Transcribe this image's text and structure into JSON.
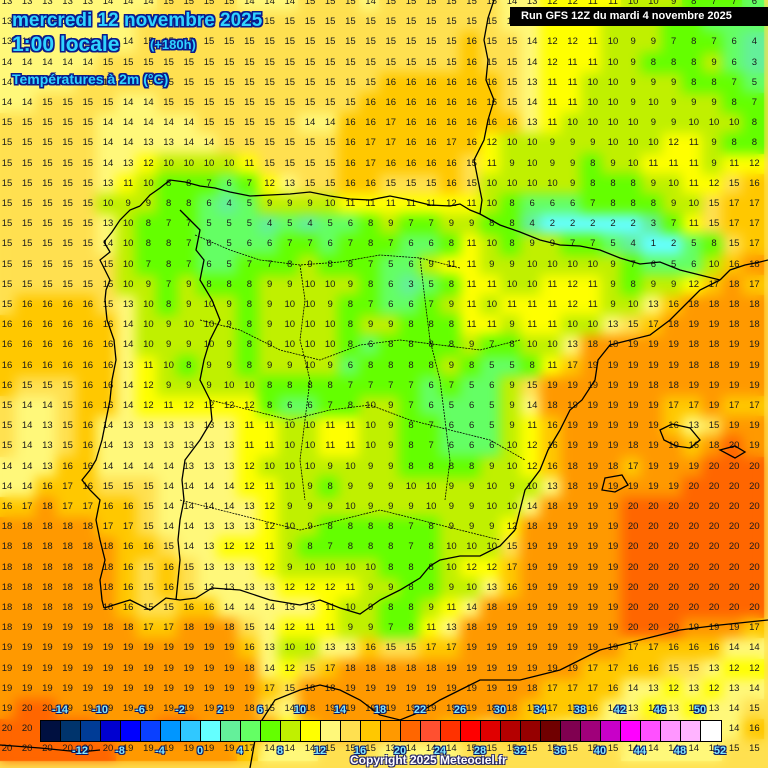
{
  "header": {
    "date": "mercredi 12 novembre 2025",
    "time": "1:00 locale",
    "lead_time": "(+180h)",
    "parameter": "Températures à 2m (°C)",
    "run": "Run GFS 12Z du mardi 4 novembre 2025"
  },
  "footer": {
    "copyright": "Copyright 2025 Meteociel.fr"
  },
  "legend": {
    "colors": [
      "#001040",
      "#00346c",
      "#003c96",
      "#0000d0",
      "#0000ff",
      "#0a40ff",
      "#0096ff",
      "#30c8ff",
      "#64ffff",
      "#64f09a",
      "#64ff64",
      "#64ff00",
      "#c0f000",
      "#ffff00",
      "#fff87a",
      "#ffe050",
      "#ffc800",
      "#ff9900",
      "#ff6600",
      "#ff5030",
      "#ff3200",
      "#ff0000",
      "#e00000",
      "#b40000",
      "#960000",
      "#700000",
      "#800050",
      "#a0007a",
      "#c800c8",
      "#ff00ff",
      "#ff50ff",
      "#ff96ff",
      "#ffb4ff",
      "#ffffff"
    ],
    "top_labels": [
      "-14",
      "-10",
      "-6",
      "-2",
      "2",
      "6",
      "10",
      "14",
      "18",
      "22",
      "26",
      "30",
      "34",
      "38",
      "42",
      "46",
      "50"
    ],
    "bottom_labels": [
      "-12",
      "-8",
      "-4",
      "0",
      "4",
      "8",
      "12",
      "16",
      "20",
      "24",
      "28",
      "32",
      "36",
      "40",
      "44",
      "48",
      "52"
    ]
  },
  "map": {
    "region": "Iberian Peninsula",
    "grid_rows": [
      "13 13 13 13 13 14 14 14 15 15 15 15 14 14 14 15 15 15 14 15 15 15 15 15 15 14 13 12 12 11 11 10 10 9 8 7 7 6",
      "13 13 13 13 13 14 14 15 15 15 15 15 15 15 15 15 15 15 15 15 15 15 15 15 15 14 14 12 12 11 10 9 9 7 8 6 6 5",
      "13 13 13 14 14 14 14 15 15 15 15 15 15 15 15 15 15 15 15 15 15 15 15 16 15 15 14 12 12 11 10 9 9 7 8 7 6 4",
      "14 14 14 14 14 15 15 15 15 15 15 15 15 15 15 15 15 15 15 15 15 15 15 16 15 15 14 12 11 11 10 9 8 8 8 9 6 3",
      "14 14 14 14 15 15 15 15 15 15 15 15 15 15 15 15 15 15 15 16 16 16 16 16 16 15 13 11 11 10 10 9 9 9 8 8 7 5",
      "14 14 15 15 15 15 14 14 15 15 15 15 15 15 15 15 15 15 16 16 16 16 16 16 16 15 14 11 11 10 10 9 10 9 9 9 8 7",
      "15 15 15 15 15 14 14 14 14 14 15 15 15 15 15 14 14 16 16 17 16 16 16 16 16 16 13 11 10 10 10 10 9 9 10 10 10 8",
      "15 15 15 15 15 14 14 13 13 14 14 15 15 15 15 15 15 16 17 17 16 16 17 16 12 10 10 9 9 9 10 10 10 12 11 9 8 8",
      "15 15 15 15 15 14 13 12 10 10 10 10 11 15 15 15 15 16 17 16 16 16 16 15 11 9 10 9 9 8 9 10 11 11 11 9 11 12",
      "15 15 15 15 15 13 11 10 8 8 7 6 7 12 13 15 15 16 16 15 15 15 16 15 10 10 10 10 9 8 8 8 9 10 11 12 15 16",
      "15 15 15 15 15 10 9 9 8 8 6 4 5 9 9 9 10 11 11 11 11 11 12 11 10 8 6 6 6 7 8 8 8 9 10 15 17 17",
      "15 15 15 15 15 13 10 8 7 7 5 5 5 4 5 4 5 6 8 9 7 7 9 9 8 8 4 2 2 2 2 2 3 7 11 15 17 17",
      "15 15 15 15 15 14 10 8 8 7 6 5 6 6 7 7 6 7 8 7 6 6 8 11 10 8 9 9 7 7 5 4 1 2 5 8 15 17",
      "15 15 15 15 15 15 10 7 8 7 6 5 7 7 8 9 8 8 7 5 6 9 11 11 9 9 10 10 10 10 9 7 6 5 6 10 16 18",
      "15 15 15 15 15 15 10 9 7 9 8 8 8 9 9 10 10 9 8 6 3 5 8 11 11 10 10 11 12 11 9 8 9 9 12 17 18 17",
      "15 16 16 16 16 15 13 10 8 9 10 9 8 9 10 10 9 8 7 6 6 7 9 11 10 11 11 11 12 11 9 10 13 16 18 18 18 18",
      "16 16 16 16 16 16 14 10 9 10 10 9 8 9 10 10 10 8 9 9 8 8 8 11 11 9 11 11 10 10 13 15 17 18 19 19 18 18",
      "16 16 16 16 16 16 14 10 9 9 10 9 8 9 10 10 10 8 6 8 8 8 8 9 7 8 10 10 13 18 18 19 19 19 18 18 19 19",
      "16 16 16 16 16 16 13 11 10 8 9 9 8 9 9 10 9 6 8 8 8 8 9 8 5 5 8 11 17 19 19 19 19 19 18 18 19 19",
      "16 15 15 15 16 16 14 12 9 9 9 10 10 8 8 8 8 7 7 7 7 6 7 5 6 9 15 19 19 19 19 19 18 18 19 19 19 19",
      "15 14 14 15 16 16 14 12 11 12 12 12 12 8 6 6 7 8 10 9 7 6 5 6 5 9 14 18 19 19 19 19 19 17 17 19 17 17",
      "15 14 13 15 16 14 13 13 13 13 13 13 11 11 10 10 11 11 10 9 8 7 6 6 5 9 11 16 19 19 19 19 19 16 13 15 19 19",
      "15 14 13 15 16 14 13 13 13 13 13 13 11 11 10 10 11 11 10 9 8 7 6 6 6 10 12 16 19 19 19 18 19 19 16 18 20 19",
      "14 14 13 16 16 14 14 14 14 13 13 13 12 10 10 10 9 10 9 9 8 8 8 8 9 10 12 16 18 19 18 17 19 19 19 20 20 20",
      "14 14 16 17 16 15 15 15 14 14 14 14 12 11 10 9 8 9 9 9 10 10 9 9 10 9 10 13 18 19 19 19 19 19 20 20 20 20",
      "16 17 18 17 17 16 16 15 14 14 14 14 13 12 9 9 9 10 9 9 9 10 9 9 10 10 14 18 19 19 19 20 20 20 20 20 20 20",
      "18 18 18 18 18 17 17 15 14 14 13 13 13 12 10 9 8 8 8 8 7 8 9 9 9 12 18 19 19 19 19 20 20 20 20 20 20 20",
      "18 18 18 18 18 18 16 16 15 14 13 12 12 11 9 8 7 8 8 8 7 8 10 10 10 15 19 19 19 19 19 20 20 20 20 20 20 20",
      "18 18 18 18 18 18 16 15 16 15 13 13 13 12 9 10 10 10 10 8 8 8 10 12 12 17 19 19 19 19 19 20 20 20 20 20 20 20",
      "18 18 18 18 18 18 16 15 16 15 13 13 13 13 12 12 12 11 9 9 8 8 9 10 13 16 19 19 19 19 19 20 20 20 20 20 20 20",
      "18 18 18 18 19 18 16 15 15 16 16 14 14 14 13 13 11 10 9 8 8 9 11 14 18 19 19 19 19 19 19 20 20 20 20 20 20 20",
      "18 19 19 19 19 18 18 17 17 18 19 18 15 14 12 11 11 9 9 7 8 11 13 18 19 19 19 19 19 19 19 20 20 20 19 19 19 17",
      "19 19 19 19 19 19 19 19 19 19 19 19 16 13 10 10 13 13 16 15 15 17 17 19 19 19 19 19 19 19 19 17 17 16 16 16 14 14",
      "19 19 19 19 19 19 19 19 19 19 19 19 18 14 12 15 17 18 18 18 18 18 19 19 19 19 19 19 19 17 17 16 16 15 15 13 12 12",
      "19 19 19 19 19 19 19 19 19 19 19 19 19 17 15 18 18 19 19 19 19 19 19 19 19 19 18 17 17 17 16 14 13 12 13 12 13 14",
      "19 20 20 19 19 19 19 19 19 19 19 19 18 15 14 18 19 19 19 19 19 19 19 19 18 18 17 17 17 16 14 13 12 13 12 13 14 15",
      "20 20 20 20 20 19 19 19 20 20 19 19 19 18 11 16 18 19 19 19 18 18 16 16 15 17 16 15 13 13 14 15 15 14 14 14 14 16",
      "20 20 20 20 20 20 19 19 19 19 19 19 17 14 14 14 15 15 15 13 14 14 14 15 15 15 15 15 15 15 15 14 14 14 14 14 15 15"
    ]
  }
}
